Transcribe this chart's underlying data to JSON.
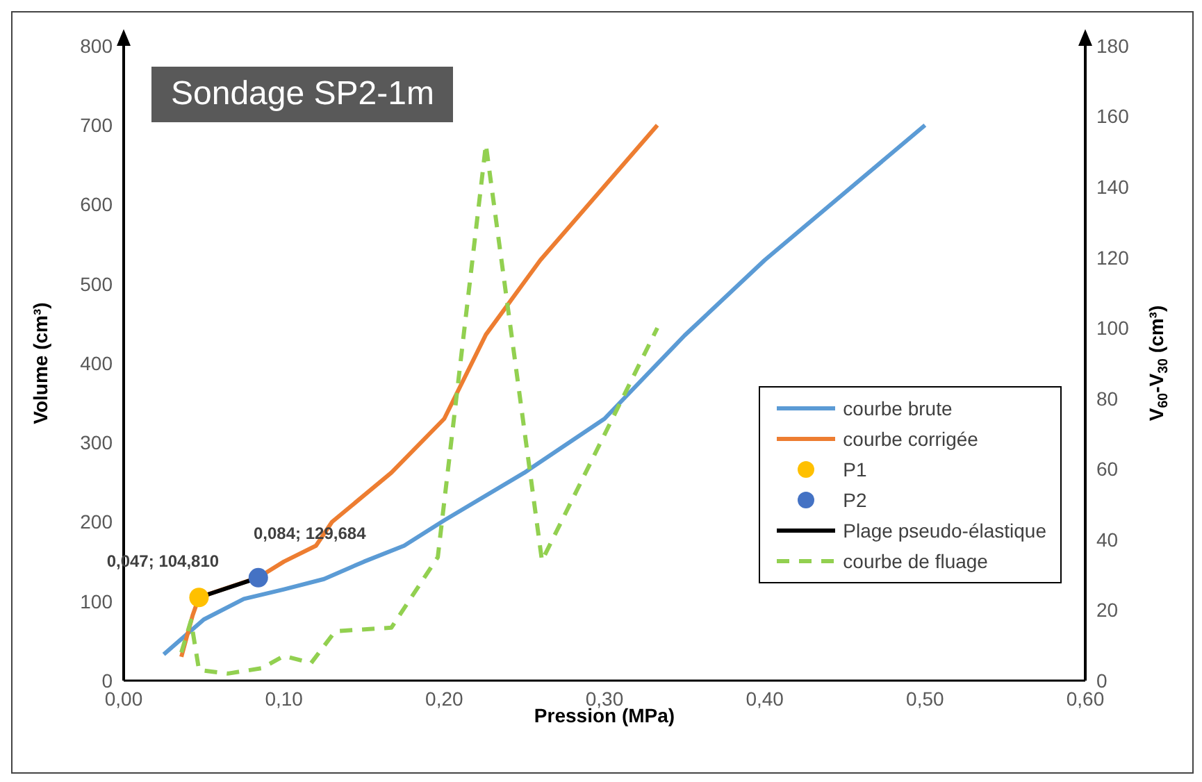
{
  "chart_data": {
    "type": "line",
    "title": "Sondage SP2-1m",
    "xlabel": "Pression (MPa)",
    "ylabel": "Volume (cm³)",
    "y2label": "V$_{60}$-V$_{30}$ (cm³)",
    "xlim": [
      0,
      0.6
    ],
    "xticks": [
      {
        "value": 0,
        "label": "0,00"
      },
      {
        "value": 0.1,
        "label": "0,10"
      },
      {
        "value": 0.2,
        "label": "0,20"
      },
      {
        "value": 0.3,
        "label": "0,30"
      },
      {
        "value": 0.4,
        "label": "0,40"
      },
      {
        "value": 0.5,
        "label": "0,50"
      },
      {
        "value": 0.6,
        "label": "0,60"
      }
    ],
    "ylim": [
      0,
      800
    ],
    "yticks": [
      0,
      100,
      200,
      300,
      400,
      500,
      600,
      700,
      800
    ],
    "y2lim": [
      0,
      180
    ],
    "y2ticks": [
      0,
      20,
      40,
      60,
      80,
      100,
      120,
      140,
      160,
      180
    ],
    "grid": false,
    "legend": "right",
    "marker": "none",
    "series": [
      {
        "name": "courbe brute",
        "color": "#5b9bd5",
        "x": [
          0.025,
          0.05,
          0.075,
          0.1,
          0.125,
          0.15,
          0.175,
          0.2,
          0.25,
          0.3,
          0.35,
          0.4,
          0.5
        ],
        "values": [
          33,
          77,
          103,
          115,
          128,
          150,
          170,
          202,
          262,
          330,
          435,
          530,
          700
        ]
      },
      {
        "name": "courbe corrigée",
        "color": "#ed7d31",
        "x": [
          0.036,
          0.043,
          0.047,
          0.084,
          0.1,
          0.12,
          0.13,
          0.167,
          0.2,
          0.226,
          0.26,
          0.333
        ],
        "values": [
          30,
          82,
          105,
          130,
          150,
          170,
          200,
          262,
          330,
          436,
          530,
          700
        ]
      },
      {
        "name": "P1",
        "type": "scatter",
        "marker": "circle",
        "color": "#ffc000",
        "x": [
          0.047
        ],
        "values": [
          104.81
        ],
        "value_labels": [
          "0,047; 104,810"
        ]
      },
      {
        "name": "P2",
        "type": "scatter",
        "marker": "circle",
        "color": "#4472c4",
        "x": [
          0.084
        ],
        "values": [
          129.684
        ],
        "value_labels": [
          "0,084; 129,684"
        ]
      },
      {
        "name": "Plage pseudo-élastique",
        "color": "#000000",
        "x": [
          0.047,
          0.084
        ],
        "values": [
          104.81,
          129.684
        ]
      },
      {
        "name": "courbe de fluage",
        "axis": "y2",
        "line_style": "dashed",
        "color": "#92d050",
        "x": [
          0.036,
          0.042,
          0.047,
          0.065,
          0.086,
          0.1,
          0.117,
          0.132,
          0.167,
          0.196,
          0.226,
          0.261,
          0.333
        ],
        "values": [
          8,
          17,
          3,
          2,
          3.5,
          7,
          5,
          14,
          15,
          35,
          152,
          34,
          100
        ]
      }
    ]
  }
}
